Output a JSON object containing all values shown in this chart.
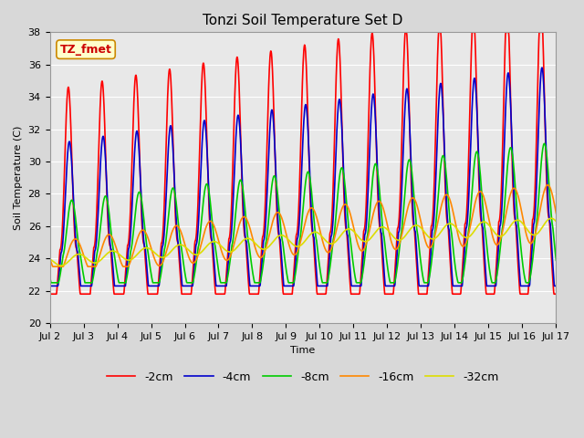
{
  "title": "Tonzi Soil Temperature Set D",
  "xlabel": "Time",
  "ylabel": "Soil Temperature (C)",
  "ylim": [
    20,
    38
  ],
  "series": {
    "-2cm": {
      "color": "#ff0000",
      "linewidth": 1.2
    },
    "-4cm": {
      "color": "#0000cc",
      "linewidth": 1.2
    },
    "-8cm": {
      "color": "#00cc00",
      "linewidth": 1.2
    },
    "-16cm": {
      "color": "#ff8800",
      "linewidth": 1.2
    },
    "-32cm": {
      "color": "#dddd00",
      "linewidth": 1.2
    }
  },
  "tick_labels": [
    "Jul 2",
    "Jul 3",
    "Jul 4",
    "Jul 5",
    "Jul 6",
    "Jul 7",
    "Jul 8",
    "Jul 9",
    "Jul 10",
    "Jul 11",
    "Jul 12",
    "Jul 13",
    "Jul 14",
    "Jul 15",
    "Jul 16",
    "Jul 17"
  ],
  "yticks": [
    20,
    22,
    24,
    26,
    28,
    30,
    32,
    34,
    36,
    38
  ],
  "bg_color": "#d8d8d8",
  "plot_bg": "#e8e8e8",
  "grid_color": "#ffffff",
  "title_fontsize": 11,
  "label_fontsize": 8,
  "tick_fontsize": 8,
  "legend_fontsize": 9,
  "annotation_text": "TZ_fmet",
  "annotation_color": "#cc0000",
  "annotation_bg": "#ffffcc",
  "annotation_border": "#cc8800"
}
